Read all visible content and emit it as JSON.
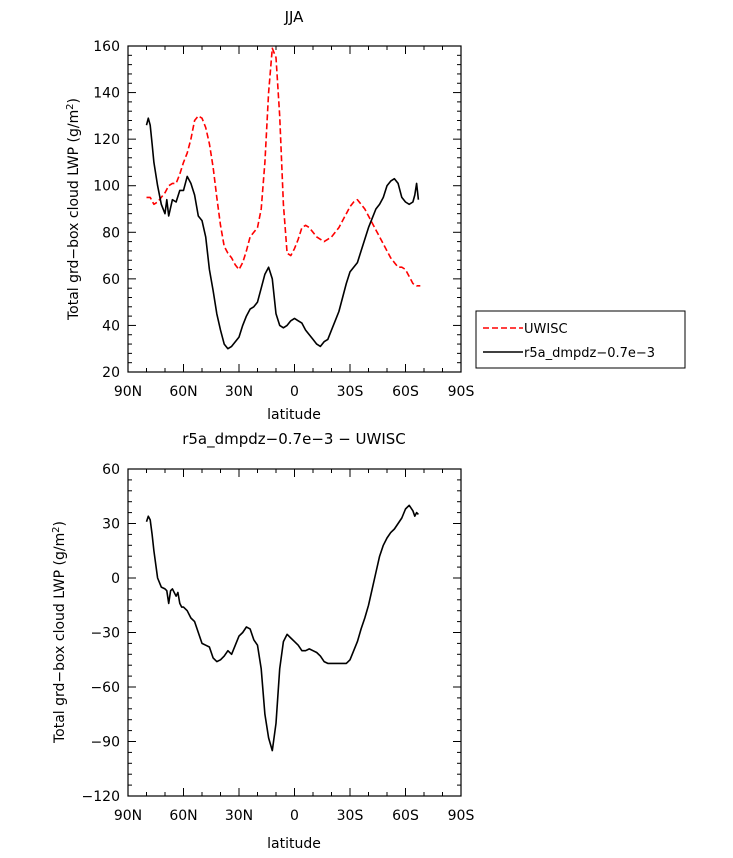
{
  "chart_data": [
    {
      "type": "line",
      "title": "JJA",
      "xlabel": "latitude",
      "ylabel": "Total grd−box cloud LWP (g/m",
      "ylabel_sup": "2",
      "ylabel_end": ")",
      "xlim": [
        -90,
        90
      ],
      "ylim": [
        20,
        160
      ],
      "x_ticks": [
        -90,
        -60,
        -30,
        0,
        30,
        60,
        90
      ],
      "x_tick_labels": [
        "90N",
        "60N",
        "30N",
        "0",
        "30S",
        "60S",
        "90S"
      ],
      "y_ticks": [
        20,
        40,
        60,
        80,
        100,
        120,
        140,
        160
      ],
      "y_tick_labels": [
        "20",
        "40",
        "60",
        "80",
        "100",
        "120",
        "140",
        "160"
      ],
      "grid": false,
      "legend_position": "right",
      "series": [
        {
          "name": "UWISC",
          "color": "#ff0000",
          "dash": "dashed",
          "x": [
            -80,
            -78,
            -76,
            -74,
            -72,
            -70,
            -68,
            -66,
            -64,
            -62,
            -60,
            -58,
            -56,
            -54,
            -52,
            -50,
            -48,
            -46,
            -44,
            -42,
            -40,
            -38,
            -36,
            -34,
            -32,
            -30,
            -28,
            -26,
            -24,
            -22,
            -20,
            -18,
            -16,
            -14,
            -12,
            -10,
            -8,
            -6,
            -4,
            -2,
            0,
            2,
            4,
            6,
            8,
            10,
            12,
            14,
            16,
            18,
            20,
            22,
            24,
            26,
            28,
            30,
            32,
            34,
            36,
            38,
            40,
            42,
            44,
            46,
            48,
            50,
            52,
            54,
            56,
            58,
            60,
            62,
            64,
            66,
            68
          ],
          "y": [
            95,
            95,
            92,
            93,
            95,
            97,
            100,
            101,
            101,
            105,
            110,
            114,
            120,
            128,
            130,
            129,
            125,
            118,
            108,
            95,
            83,
            74,
            71,
            69,
            66,
            64,
            67,
            72,
            78,
            80,
            82,
            90,
            110,
            140,
            159,
            155,
            130,
            92,
            71,
            70,
            73,
            77,
            82,
            83,
            82,
            80,
            78,
            77,
            76,
            77,
            78,
            80,
            82,
            85,
            88,
            91,
            93,
            94,
            92,
            90,
            87,
            84,
            81,
            78,
            75,
            72,
            69,
            67,
            65,
            65,
            64,
            61,
            58,
            57,
            57
          ]
        },
        {
          "name": "r5a_dmpdz−0.7e−3",
          "color": "#000000",
          "dash": "solid",
          "x": [
            -80,
            -79,
            -78,
            -77,
            -76,
            -74,
            -72,
            -70,
            -69,
            -68,
            -66,
            -64,
            -62,
            -60,
            -58,
            -56,
            -54,
            -52,
            -50,
            -48,
            -46,
            -44,
            -42,
            -40,
            -38,
            -36,
            -34,
            -32,
            -30,
            -28,
            -26,
            -24,
            -22,
            -20,
            -18,
            -16,
            -14,
            -12,
            -10,
            -8,
            -6,
            -4,
            -2,
            0,
            2,
            4,
            6,
            8,
            10,
            12,
            14,
            16,
            18,
            20,
            22,
            24,
            26,
            28,
            30,
            32,
            34,
            36,
            38,
            40,
            42,
            44,
            46,
            48,
            50,
            52,
            54,
            56,
            58,
            60,
            62,
            64,
            65,
            66,
            67
          ],
          "y": [
            126,
            129,
            126,
            118,
            110,
            100,
            92,
            88,
            94,
            87,
            94,
            93,
            98,
            98,
            104,
            101,
            96,
            87,
            85,
            78,
            64,
            55,
            45,
            38,
            32,
            30,
            31,
            33,
            35,
            40,
            44,
            47,
            48,
            50,
            56,
            62,
            65,
            60,
            45,
            40,
            39,
            40,
            42,
            43,
            42,
            41,
            38,
            36,
            34,
            32,
            31,
            33,
            34,
            38,
            42,
            46,
            52,
            58,
            63,
            65,
            67,
            72,
            77,
            82,
            86,
            90,
            92,
            95,
            100,
            102,
            103,
            101,
            95,
            93,
            92,
            93,
            96,
            101,
            94
          ]
        }
      ]
    },
    {
      "type": "line",
      "title": "r5a_dmpdz−0.7e−3 − UWISC",
      "xlabel": "latitude",
      "ylabel": "Total grd−box cloud LWP (g/m",
      "ylabel_sup": "2",
      "ylabel_end": ")",
      "xlim": [
        -90,
        90
      ],
      "ylim": [
        -120,
        60
      ],
      "x_ticks": [
        -90,
        -60,
        -30,
        0,
        30,
        60,
        90
      ],
      "x_tick_labels": [
        "90N",
        "60N",
        "30N",
        "0",
        "30S",
        "60S",
        "90S"
      ],
      "y_ticks": [
        -120,
        -90,
        -60,
        -30,
        0,
        30,
        60
      ],
      "y_tick_labels": [
        "−120",
        "−90",
        "−60",
        "−30",
        "0",
        "30",
        "60"
      ],
      "grid": false,
      "series": [
        {
          "color": "#000000",
          "dash": "solid",
          "x": [
            -80,
            -79,
            -78,
            -77,
            -76,
            -74,
            -72,
            -70,
            -69,
            -68,
            -67,
            -66,
            -64,
            -63,
            -62,
            -61,
            -60,
            -58,
            -56,
            -54,
            -52,
            -50,
            -48,
            -46,
            -44,
            -42,
            -40,
            -38,
            -36,
            -34,
            -32,
            -30,
            -28,
            -26,
            -24,
            -22,
            -20,
            -18,
            -16,
            -14,
            -12,
            -10,
            -8,
            -6,
            -4,
            -2,
            0,
            2,
            4,
            6,
            8,
            10,
            12,
            14,
            16,
            18,
            20,
            22,
            24,
            26,
            28,
            30,
            32,
            34,
            36,
            38,
            40,
            42,
            44,
            46,
            48,
            50,
            52,
            54,
            56,
            58,
            60,
            62,
            64,
            65,
            66,
            67
          ],
          "y": [
            31,
            34,
            32,
            24,
            15,
            0,
            -5,
            -6,
            -7,
            -14,
            -7,
            -6,
            -10,
            -8,
            -14,
            -16,
            -16,
            -18,
            -22,
            -24,
            -30,
            -36,
            -37,
            -38,
            -44,
            -46,
            -45,
            -43,
            -40,
            -42,
            -37,
            -32,
            -30,
            -27,
            -28,
            -34,
            -37,
            -50,
            -75,
            -88,
            -95,
            -80,
            -50,
            -35,
            -31,
            -33,
            -35,
            -37,
            -40,
            -40,
            -39,
            -40,
            -41,
            -43,
            -46,
            -47,
            -47,
            -47,
            -47,
            -47,
            -47,
            -45,
            -40,
            -35,
            -28,
            -22,
            -15,
            -6,
            3,
            12,
            18,
            22,
            25,
            27,
            30,
            33,
            38,
            40,
            37,
            34,
            36,
            35
          ]
        }
      ]
    }
  ]
}
